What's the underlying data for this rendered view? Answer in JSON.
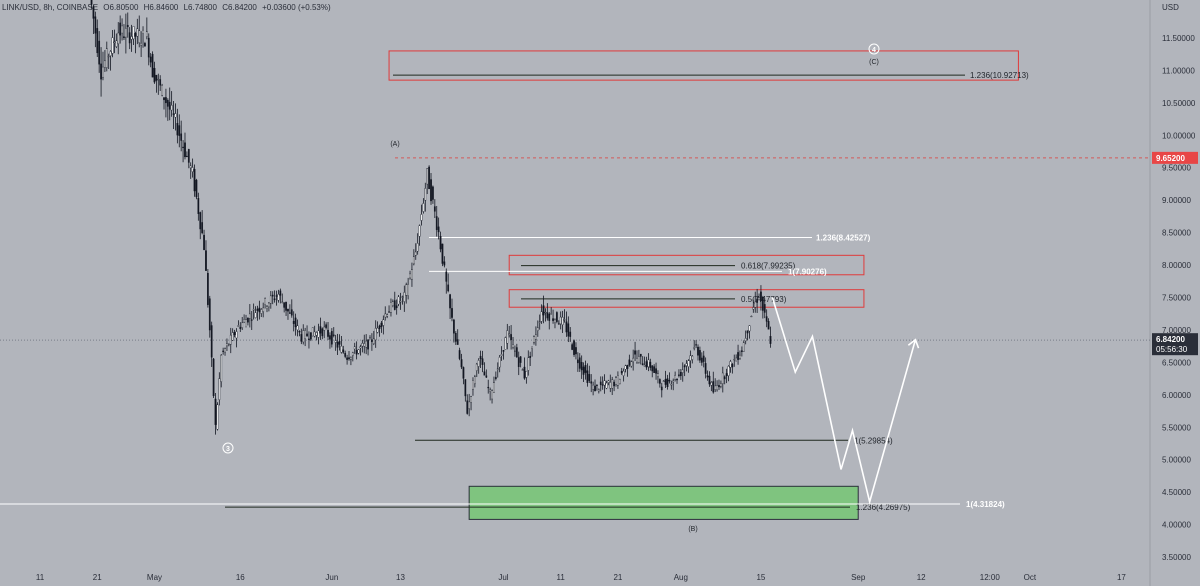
{
  "header": {
    "symbol": "LINK/USD, 8h, COINBASE",
    "open": "O6.80500",
    "high": "H6.84600",
    "low": "L6.74800",
    "close": "C6.84200",
    "change": "+0.03600 (+0.53%)"
  },
  "colors": {
    "background": "#b2b5bc",
    "up_candle": "#ffffff",
    "down_candle": "#131722",
    "zone_red": "#e03a3a",
    "zone_green": "#7fc47f",
    "last_price_label": "#2a2e39",
    "resistance_label": "#e84646"
  },
  "chart_data": {
    "type": "candlestick",
    "title": "LINK/USD, 8h, COINBASE",
    "ylabel": "USD",
    "y_axis_unit": "USD",
    "ylim": [
      3.3,
      11.9
    ],
    "x_range": [
      "2022-04-04",
      "2022-10-22"
    ],
    "price_ticks": [
      "11.50000",
      "11.00000",
      "10.50000",
      "10.00000",
      "9.50000",
      "9.00000",
      "8.50000",
      "8.00000",
      "7.50000",
      "7.00000",
      "6.50000",
      "6.00000",
      "5.50000",
      "5.00000",
      "4.50000",
      "4.00000",
      "3.50000"
    ],
    "time_ticks": [
      {
        "label": "11",
        "date": "2022-04-11"
      },
      {
        "label": "21",
        "date": "2022-04-21"
      },
      {
        "label": "May",
        "date": "2022-05-01"
      },
      {
        "label": "16",
        "date": "2022-05-16"
      },
      {
        "label": "Jun",
        "date": "2022-06-01"
      },
      {
        "label": "13",
        "date": "2022-06-13"
      },
      {
        "label": "Jul",
        "date": "2022-07-01"
      },
      {
        "label": "11",
        "date": "2022-07-11"
      },
      {
        "label": "21",
        "date": "2022-07-21"
      },
      {
        "label": "Aug",
        "date": "2022-08-01"
      },
      {
        "label": "15",
        "date": "2022-08-15"
      },
      {
        "label": "Sep",
        "date": "2022-09-01"
      },
      {
        "label": "12",
        "date": "2022-09-12"
      },
      {
        "label": "12:00",
        "date": "2022-09-24"
      },
      {
        "label": "Oct",
        "date": "2022-10-01"
      },
      {
        "label": "17",
        "date": "2022-10-17"
      }
    ],
    "last_price": {
      "value": 6.842,
      "label": "6.84200",
      "countdown": "05:56:30"
    },
    "resistance_line": {
      "value": 9.652,
      "label": "9.65200"
    },
    "anchors": [
      {
        "date": "2022-04-20",
        "price": 12.2
      },
      {
        "date": "2022-04-22",
        "price": 11.0
      },
      {
        "date": "2022-04-25",
        "price": 11.6
      },
      {
        "date": "2022-04-30",
        "price": 11.5
      },
      {
        "date": "2022-05-01",
        "price": 11.0
      },
      {
        "date": "2022-05-05",
        "price": 10.2
      },
      {
        "date": "2022-05-08",
        "price": 9.4
      },
      {
        "date": "2022-05-10",
        "price": 8.3
      },
      {
        "date": "2022-05-11",
        "price": 7.0
      },
      {
        "date": "2022-05-12",
        "price": 5.5
      },
      {
        "date": "2022-05-13",
        "price": 6.6
      },
      {
        "date": "2022-05-16",
        "price": 7.05
      },
      {
        "date": "2022-05-19",
        "price": 7.3
      },
      {
        "date": "2022-05-23",
        "price": 7.55
      },
      {
        "date": "2022-05-27",
        "price": 6.9
      },
      {
        "date": "2022-05-31",
        "price": 7.0
      },
      {
        "date": "2022-06-04",
        "price": 6.6
      },
      {
        "date": "2022-06-08",
        "price": 6.8
      },
      {
        "date": "2022-06-11",
        "price": 7.3
      },
      {
        "date": "2022-06-14",
        "price": 7.5
      },
      {
        "date": "2022-06-16",
        "price": 8.2
      },
      {
        "date": "2022-06-18",
        "price": 9.4
      },
      {
        "date": "2022-06-20",
        "price": 8.5
      },
      {
        "date": "2022-06-22",
        "price": 7.3
      },
      {
        "date": "2022-06-24",
        "price": 6.4
      },
      {
        "date": "2022-06-25",
        "price": 5.75
      },
      {
        "date": "2022-06-27",
        "price": 6.6
      },
      {
        "date": "2022-06-29",
        "price": 6.0
      },
      {
        "date": "2022-07-02",
        "price": 6.95
      },
      {
        "date": "2022-07-05",
        "price": 6.3
      },
      {
        "date": "2022-07-08",
        "price": 7.3
      },
      {
        "date": "2022-07-12",
        "price": 7.1
      },
      {
        "date": "2022-07-14",
        "price": 6.6
      },
      {
        "date": "2022-07-17",
        "price": 6.1
      },
      {
        "date": "2022-07-21",
        "price": 6.2
      },
      {
        "date": "2022-07-24",
        "price": 6.6
      },
      {
        "date": "2022-07-27",
        "price": 6.45
      },
      {
        "date": "2022-07-29",
        "price": 6.15
      },
      {
        "date": "2022-08-01",
        "price": 6.3
      },
      {
        "date": "2022-08-04",
        "price": 6.75
      },
      {
        "date": "2022-08-07",
        "price": 6.05
      },
      {
        "date": "2022-08-10",
        "price": 6.45
      },
      {
        "date": "2022-08-12",
        "price": 6.7
      },
      {
        "date": "2022-08-14",
        "price": 7.35
      },
      {
        "date": "2022-08-15",
        "price": 7.55
      },
      {
        "date": "2022-08-17",
        "price": 6.85
      }
    ],
    "fib_levels": [
      {
        "label": "1.236(10.92713)",
        "value": 10.927
      },
      {
        "label": "1.236(8.42527)",
        "value": 8.425
      },
      {
        "label": "0.618(7.99235)",
        "value": 7.992
      },
      {
        "label": "1(7.90276)",
        "value": 7.903
      },
      {
        "label": "0.5(7.47793)",
        "value": 7.478
      },
      {
        "label": "1(5.29854)",
        "value": 5.299
      },
      {
        "label": "1.236(4.26975)",
        "value": 4.27
      },
      {
        "label": "1(4.31824)",
        "value": 4.318
      }
    ],
    "zones": [
      {
        "name": "target-zone-4",
        "color": "red",
        "price_range": [
          10.85,
          11.3
        ],
        "date_range": [
          "2022-06-11",
          "2022-09-29"
        ]
      },
      {
        "name": "resistance-zone-upper",
        "color": "red",
        "price_range": [
          7.85,
          8.15
        ],
        "date_range": [
          "2022-07-02",
          "2022-09-02"
        ]
      },
      {
        "name": "resistance-zone-lower",
        "color": "red",
        "price_range": [
          7.35,
          7.62
        ],
        "date_range": [
          "2022-07-02",
          "2022-09-02"
        ]
      },
      {
        "name": "support-zone-b",
        "color": "green",
        "price_range": [
          4.08,
          4.59
        ],
        "date_range": [
          "2022-06-25",
          "2022-09-01"
        ]
      }
    ],
    "projection_path": [
      {
        "date": "2022-08-17",
        "price": 7.5
      },
      {
        "date": "2022-08-21",
        "price": 6.35
      },
      {
        "date": "2022-08-24",
        "price": 6.9
      },
      {
        "date": "2022-08-29",
        "price": 4.85
      },
      {
        "date": "2022-08-31",
        "price": 5.45
      },
      {
        "date": "2022-09-03",
        "price": 4.35
      },
      {
        "date": "2022-09-11",
        "price": 6.85
      }
    ],
    "wave_labels": [
      {
        "text": "4",
        "circled": true
      },
      {
        "text": "(C)",
        "circled": false
      },
      {
        "text": "(A)",
        "circled": false
      },
      {
        "text": "3",
        "circled": true
      },
      {
        "text": "(B)",
        "circled": false
      }
    ],
    "grid": false,
    "legend": "none"
  }
}
